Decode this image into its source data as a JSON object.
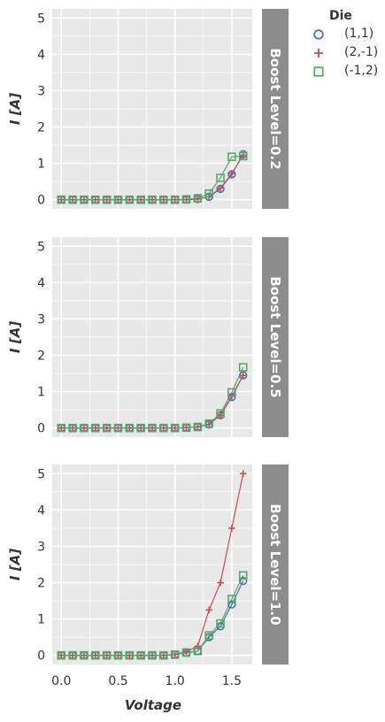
{
  "chart_data": {
    "type": "line",
    "xlabel": "Voltage",
    "ylabel": "I [A]",
    "xlim": [
      -0.08,
      1.68
    ],
    "ylim": [
      -0.25,
      5.25
    ],
    "xticks": [
      0.0,
      0.5,
      1.0,
      1.5
    ],
    "xtick_labels": [
      "0.0",
      "0.5",
      "1.0",
      "1.5"
    ],
    "yticks": [
      0,
      1,
      2,
      3,
      4,
      5
    ],
    "ytick_labels": [
      "0",
      "1",
      "2",
      "3",
      "4",
      "5"
    ],
    "grid": true,
    "legend": {
      "title": "Die",
      "placement": "top-right outside",
      "entries": [
        "(1,1)",
        "(2,-1)",
        "(-1,2)"
      ]
    },
    "x": [
      0.0,
      0.1,
      0.2,
      0.3,
      0.4,
      0.5,
      0.6,
      0.7,
      0.8,
      0.9,
      1.0,
      1.1,
      1.2,
      1.3,
      1.4,
      1.5,
      1.6
    ],
    "series_style": [
      {
        "name": "(1,1)",
        "color": "#4c72b0",
        "marker": "circle"
      },
      {
        "name": "(2,-1)",
        "color": "#c44e52",
        "marker": "plus"
      },
      {
        "name": "(-1,2)",
        "color": "#55a868",
        "marker": "square"
      }
    ],
    "facets": [
      {
        "label": "Boost Level=0.2",
        "series": [
          {
            "name": "(1,1)",
            "values": [
              0,
              0,
              0,
              0,
              0,
              0,
              0,
              0,
              0,
              0,
              0,
              0,
              0.02,
              0.08,
              0.3,
              0.7,
              1.25
            ]
          },
          {
            "name": "(2,-1)",
            "values": [
              0,
              0,
              0,
              0,
              0,
              0,
              0,
              0,
              0,
              0,
              0,
              0,
              0.02,
              0.08,
              0.32,
              0.72,
              1.22
            ]
          },
          {
            "name": "(-1,2)",
            "values": [
              0,
              0,
              0,
              0,
              0,
              0,
              0,
              0,
              0,
              0,
              0,
              0.01,
              0.04,
              0.17,
              0.6,
              1.18,
              1.2
            ]
          }
        ]
      },
      {
        "label": "Boost Level=0.5",
        "series": [
          {
            "name": "(1,1)",
            "values": [
              0,
              0,
              0,
              0,
              0,
              0,
              0,
              0,
              0,
              0,
              0,
              0.01,
              0.03,
              0.1,
              0.35,
              0.85,
              1.45
            ]
          },
          {
            "name": "(2,-1)",
            "values": [
              0,
              0,
              0,
              0,
              0,
              0,
              0,
              0,
              0,
              0,
              0,
              0.01,
              0.03,
              0.1,
              0.35,
              0.87,
              1.45
            ]
          },
          {
            "name": "(-1,2)",
            "values": [
              0,
              0,
              0,
              0,
              0,
              0,
              0,
              0,
              0,
              0,
              0,
              0.01,
              0.03,
              0.12,
              0.4,
              0.98,
              1.67
            ]
          }
        ]
      },
      {
        "label": "Boost Level=1.0",
        "series": [
          {
            "name": "(1,1)",
            "values": [
              0,
              0,
              0,
              0,
              0,
              0,
              0,
              0,
              0,
              0,
              0.02,
              0.07,
              0.12,
              0.5,
              0.8,
              1.4,
              2.05
            ]
          },
          {
            "name": "(2,-1)",
            "values": [
              0,
              0,
              0,
              0,
              0,
              0,
              0,
              0,
              0,
              0,
              0.03,
              0.1,
              0.25,
              1.25,
              2.0,
              3.5,
              5.0
            ]
          },
          {
            "name": "(-1,2)",
            "values": [
              0,
              0,
              0,
              0,
              0,
              0,
              0,
              0,
              0,
              0,
              0.02,
              0.08,
              0.12,
              0.55,
              0.88,
              1.55,
              2.2
            ]
          }
        ]
      }
    ]
  },
  "colors": {
    "panel_background": "#e8e8e8",
    "facet_strip": "#8c8c8c",
    "gridline": "#ffffff",
    "text": "#333333"
  }
}
